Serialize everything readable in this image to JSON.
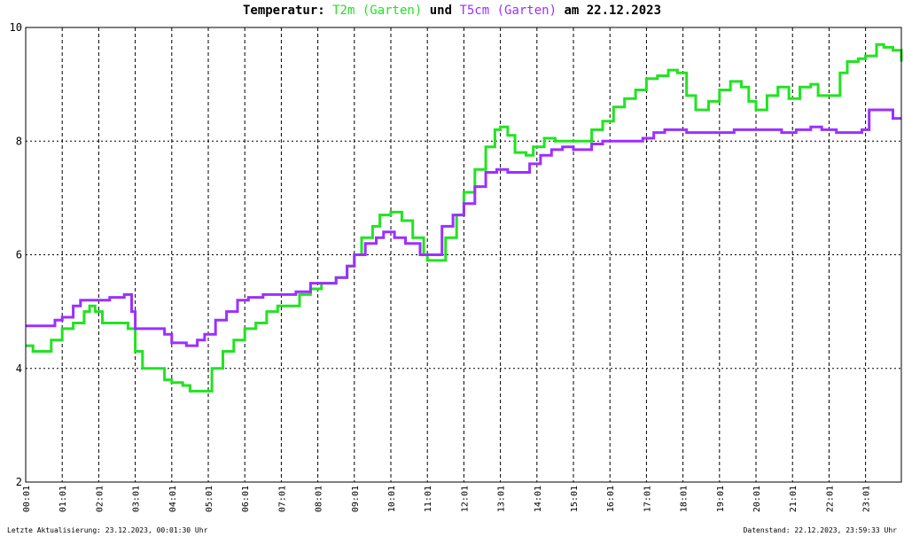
{
  "title": {
    "prefix": "Temperatur: ",
    "series1": "T2m (Garten)",
    "middle": " und ",
    "series2": "T5cm (Garten)",
    "suffix": " am 22.12.2023"
  },
  "footer": {
    "left": "Letzte Aktualisierung: 23.12.2023, 00:01:30 Uhr",
    "right": "Datenstand: 22.12.2023, 23:59:33 Uhr"
  },
  "colors": {
    "t2m": "#22e322",
    "t5cm": "#9b30ff",
    "grid": "#000000"
  },
  "chart_data": {
    "type": "line",
    "title": "Temperatur: T2m (Garten) und T5cm (Garten) am 22.12.2023",
    "x_unit": "hours since 00:01 on 22.12.2023",
    "xlim": [
      0,
      23.98
    ],
    "ylim": [
      2,
      10
    ],
    "yticks": [
      2,
      4,
      6,
      8,
      10
    ],
    "xticks": [
      {
        "x": 0,
        "label": "00:01"
      },
      {
        "x": 1,
        "label": "01:01"
      },
      {
        "x": 2,
        "label": "02:01"
      },
      {
        "x": 3,
        "label": "03:01"
      },
      {
        "x": 4,
        "label": "04:01"
      },
      {
        "x": 5,
        "label": "05:01"
      },
      {
        "x": 6,
        "label": "06:01"
      },
      {
        "x": 7,
        "label": "07:01"
      },
      {
        "x": 8,
        "label": "08:01"
      },
      {
        "x": 9,
        "label": "09:01"
      },
      {
        "x": 10,
        "label": "10:01"
      },
      {
        "x": 11,
        "label": "11:01"
      },
      {
        "x": 12,
        "label": "12:01"
      },
      {
        "x": 13,
        "label": "13:01"
      },
      {
        "x": 14,
        "label": "14:01"
      },
      {
        "x": 15,
        "label": "15:01"
      },
      {
        "x": 16,
        "label": "16:01"
      },
      {
        "x": 17,
        "label": "17:01"
      },
      {
        "x": 18,
        "label": "18:01"
      },
      {
        "x": 19,
        "label": "19:01"
      },
      {
        "x": 20,
        "label": "20:01"
      },
      {
        "x": 21,
        "label": "21:01"
      },
      {
        "x": 22,
        "label": "22:01"
      },
      {
        "x": 23,
        "label": "23:01"
      }
    ],
    "grid": true,
    "series": [
      {
        "name": "T2m (Garten)",
        "color": "#22e322",
        "points": [
          [
            0.0,
            4.4
          ],
          [
            0.2,
            4.3
          ],
          [
            0.5,
            4.3
          ],
          [
            0.7,
            4.5
          ],
          [
            1.0,
            4.7
          ],
          [
            1.3,
            4.8
          ],
          [
            1.6,
            5.0
          ],
          [
            1.75,
            5.1
          ],
          [
            1.9,
            5.0
          ],
          [
            2.1,
            4.8
          ],
          [
            2.5,
            4.8
          ],
          [
            2.8,
            4.7
          ],
          [
            3.0,
            4.3
          ],
          [
            3.2,
            4.0
          ],
          [
            3.5,
            4.0
          ],
          [
            3.8,
            3.8
          ],
          [
            4.0,
            3.75
          ],
          [
            4.3,
            3.7
          ],
          [
            4.5,
            3.6
          ],
          [
            4.9,
            3.6
          ],
          [
            5.1,
            4.0
          ],
          [
            5.4,
            4.3
          ],
          [
            5.7,
            4.5
          ],
          [
            6.0,
            4.7
          ],
          [
            6.3,
            4.8
          ],
          [
            6.6,
            5.0
          ],
          [
            6.9,
            5.1
          ],
          [
            7.2,
            5.1
          ],
          [
            7.5,
            5.3
          ],
          [
            7.8,
            5.4
          ],
          [
            8.1,
            5.5
          ],
          [
            8.5,
            5.6
          ],
          [
            8.8,
            5.8
          ],
          [
            9.0,
            6.0
          ],
          [
            9.2,
            6.3
          ],
          [
            9.5,
            6.5
          ],
          [
            9.7,
            6.7
          ],
          [
            10.0,
            6.75
          ],
          [
            10.3,
            6.6
          ],
          [
            10.6,
            6.3
          ],
          [
            10.9,
            6.0
          ],
          [
            11.0,
            5.9
          ],
          [
            11.2,
            5.9
          ],
          [
            11.5,
            6.3
          ],
          [
            11.8,
            6.7
          ],
          [
            12.0,
            7.1
          ],
          [
            12.3,
            7.5
          ],
          [
            12.6,
            7.9
          ],
          [
            12.85,
            8.2
          ],
          [
            13.0,
            8.25
          ],
          [
            13.2,
            8.1
          ],
          [
            13.4,
            7.8
          ],
          [
            13.7,
            7.75
          ],
          [
            13.9,
            7.9
          ],
          [
            14.2,
            8.05
          ],
          [
            14.5,
            8.0
          ],
          [
            14.8,
            8.0
          ],
          [
            15.1,
            8.0
          ],
          [
            15.5,
            8.2
          ],
          [
            15.8,
            8.35
          ],
          [
            16.1,
            8.6
          ],
          [
            16.4,
            8.75
          ],
          [
            16.7,
            8.9
          ],
          [
            17.0,
            9.1
          ],
          [
            17.3,
            9.15
          ],
          [
            17.6,
            9.25
          ],
          [
            17.85,
            9.2
          ],
          [
            18.1,
            8.8
          ],
          [
            18.35,
            8.55
          ],
          [
            18.7,
            8.7
          ],
          [
            19.0,
            8.9
          ],
          [
            19.3,
            9.05
          ],
          [
            19.6,
            8.95
          ],
          [
            19.8,
            8.7
          ],
          [
            20.0,
            8.55
          ],
          [
            20.3,
            8.8
          ],
          [
            20.6,
            8.95
          ],
          [
            20.9,
            8.75
          ],
          [
            21.2,
            8.95
          ],
          [
            21.5,
            9.0
          ],
          [
            21.7,
            8.8
          ],
          [
            22.0,
            8.8
          ],
          [
            22.3,
            9.2
          ],
          [
            22.5,
            9.4
          ],
          [
            22.8,
            9.45
          ],
          [
            23.0,
            9.5
          ],
          [
            23.3,
            9.7
          ],
          [
            23.5,
            9.65
          ],
          [
            23.75,
            9.6
          ],
          [
            23.98,
            9.4
          ]
        ]
      },
      {
        "name": "T5cm (Garten)",
        "color": "#9b30ff",
        "points": [
          [
            0.0,
            4.75
          ],
          [
            0.5,
            4.75
          ],
          [
            0.8,
            4.85
          ],
          [
            1.0,
            4.9
          ],
          [
            1.3,
            5.1
          ],
          [
            1.5,
            5.2
          ],
          [
            2.0,
            5.2
          ],
          [
            2.3,
            5.25
          ],
          [
            2.7,
            5.3
          ],
          [
            2.9,
            5.0
          ],
          [
            3.0,
            4.7
          ],
          [
            3.5,
            4.7
          ],
          [
            3.8,
            4.6
          ],
          [
            4.0,
            4.45
          ],
          [
            4.4,
            4.4
          ],
          [
            4.7,
            4.5
          ],
          [
            4.9,
            4.6
          ],
          [
            5.2,
            4.85
          ],
          [
            5.5,
            5.0
          ],
          [
            5.8,
            5.2
          ],
          [
            6.1,
            5.25
          ],
          [
            6.5,
            5.3
          ],
          [
            7.0,
            5.3
          ],
          [
            7.4,
            5.35
          ],
          [
            7.8,
            5.5
          ],
          [
            8.2,
            5.5
          ],
          [
            8.5,
            5.6
          ],
          [
            8.8,
            5.8
          ],
          [
            9.0,
            6.0
          ],
          [
            9.3,
            6.2
          ],
          [
            9.6,
            6.3
          ],
          [
            9.8,
            6.4
          ],
          [
            10.1,
            6.3
          ],
          [
            10.4,
            6.2
          ],
          [
            10.8,
            6.0
          ],
          [
            11.1,
            6.0
          ],
          [
            11.4,
            6.5
          ],
          [
            11.7,
            6.7
          ],
          [
            12.0,
            6.9
          ],
          [
            12.3,
            7.2
          ],
          [
            12.6,
            7.45
          ],
          [
            12.9,
            7.5
          ],
          [
            13.2,
            7.45
          ],
          [
            13.5,
            7.45
          ],
          [
            13.8,
            7.6
          ],
          [
            14.1,
            7.75
          ],
          [
            14.4,
            7.85
          ],
          [
            14.7,
            7.9
          ],
          [
            15.0,
            7.85
          ],
          [
            15.2,
            7.85
          ],
          [
            15.5,
            7.95
          ],
          [
            15.8,
            8.0
          ],
          [
            16.2,
            8.0
          ],
          [
            16.6,
            8.0
          ],
          [
            16.9,
            8.05
          ],
          [
            17.2,
            8.15
          ],
          [
            17.5,
            8.2
          ],
          [
            17.8,
            8.2
          ],
          [
            18.1,
            8.15
          ],
          [
            18.5,
            8.15
          ],
          [
            19.0,
            8.15
          ],
          [
            19.4,
            8.2
          ],
          [
            19.8,
            8.2
          ],
          [
            20.3,
            8.2
          ],
          [
            20.7,
            8.15
          ],
          [
            21.1,
            8.2
          ],
          [
            21.5,
            8.25
          ],
          [
            21.8,
            8.2
          ],
          [
            22.2,
            8.15
          ],
          [
            22.6,
            8.15
          ],
          [
            22.9,
            8.2
          ],
          [
            23.1,
            8.55
          ],
          [
            23.4,
            8.55
          ],
          [
            23.6,
            8.55
          ],
          [
            23.75,
            8.4
          ],
          [
            23.98,
            8.4
          ]
        ]
      }
    ]
  }
}
